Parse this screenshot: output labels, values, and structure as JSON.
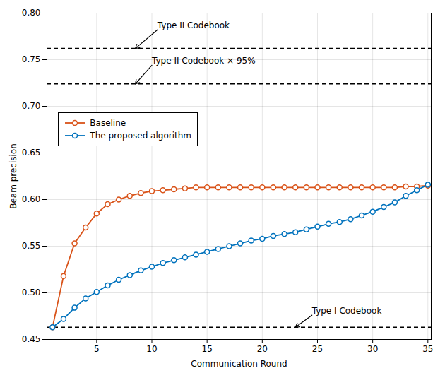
{
  "chart_data": {
    "type": "line",
    "xlabel": "Communication Round",
    "ylabel": "Beam precision",
    "xlim": [
      0.5,
      35.3
    ],
    "ylim": [
      0.45,
      0.8
    ],
    "xticks": [
      5,
      10,
      15,
      20,
      25,
      30,
      35
    ],
    "yticks": [
      0.45,
      {
        "value": 0.5,
        "label": "0.50"
      },
      0.55,
      {
        "value": 0.6,
        "label": "0.60"
      },
      0.65,
      {
        "value": 0.7,
        "label": "0.70"
      },
      0.75,
      {
        "value": 0.8,
        "label": "0.80"
      }
    ],
    "grid": true,
    "legend": "upper left",
    "marker": "circle",
    "line_style": "solid",
    "x": [
      1,
      2,
      3,
      4,
      5,
      6,
      7,
      8,
      9,
      10,
      11,
      12,
      13,
      14,
      15,
      16,
      17,
      18,
      19,
      20,
      21,
      22,
      23,
      24,
      25,
      26,
      27,
      28,
      29,
      30,
      31,
      32,
      33,
      34,
      35
    ],
    "series": [
      {
        "name": "Baseline",
        "color": "#D95319",
        "values": [
          0.463,
          0.518,
          0.553,
          0.57,
          0.585,
          0.595,
          0.6,
          0.604,
          0.607,
          0.609,
          0.61,
          0.611,
          0.612,
          0.613,
          0.613,
          0.613,
          0.613,
          0.613,
          0.613,
          0.613,
          0.613,
          0.613,
          0.613,
          0.613,
          0.613,
          0.613,
          0.613,
          0.613,
          0.613,
          0.613,
          0.613,
          0.613,
          0.614,
          0.614,
          0.615
        ]
      },
      {
        "name": "The proposed algorithm",
        "color": "#0072BD",
        "values": [
          0.463,
          0.472,
          0.484,
          0.494,
          0.501,
          0.508,
          0.514,
          0.519,
          0.524,
          0.528,
          0.532,
          0.535,
          0.538,
          0.541,
          0.544,
          0.547,
          0.55,
          0.553,
          0.556,
          0.558,
          0.561,
          0.563,
          0.565,
          0.568,
          0.571,
          0.574,
          0.576,
          0.579,
          0.583,
          0.587,
          0.592,
          0.597,
          0.604,
          0.61,
          0.616
        ]
      }
    ],
    "reference_lines": [
      {
        "y": 0.463,
        "line_style": "dashed"
      },
      {
        "y": 0.762,
        "line_style": "dashed"
      },
      {
        "y": 0.724,
        "line_style": "dashed"
      }
    ],
    "annotations": [
      {
        "text": "Type II Codebook",
        "x": 8.5,
        "y": 0.762,
        "text_x": 10.5,
        "text_y": 0.782
      },
      {
        "text": "Type II Codebook × 95%",
        "x": 8.5,
        "y": 0.724,
        "text_x": 10.0,
        "text_y": 0.744
      },
      {
        "text": "Type I Codebook",
        "x": 23.0,
        "y": 0.463,
        "text_x": 24.5,
        "text_y": 0.476
      }
    ]
  }
}
